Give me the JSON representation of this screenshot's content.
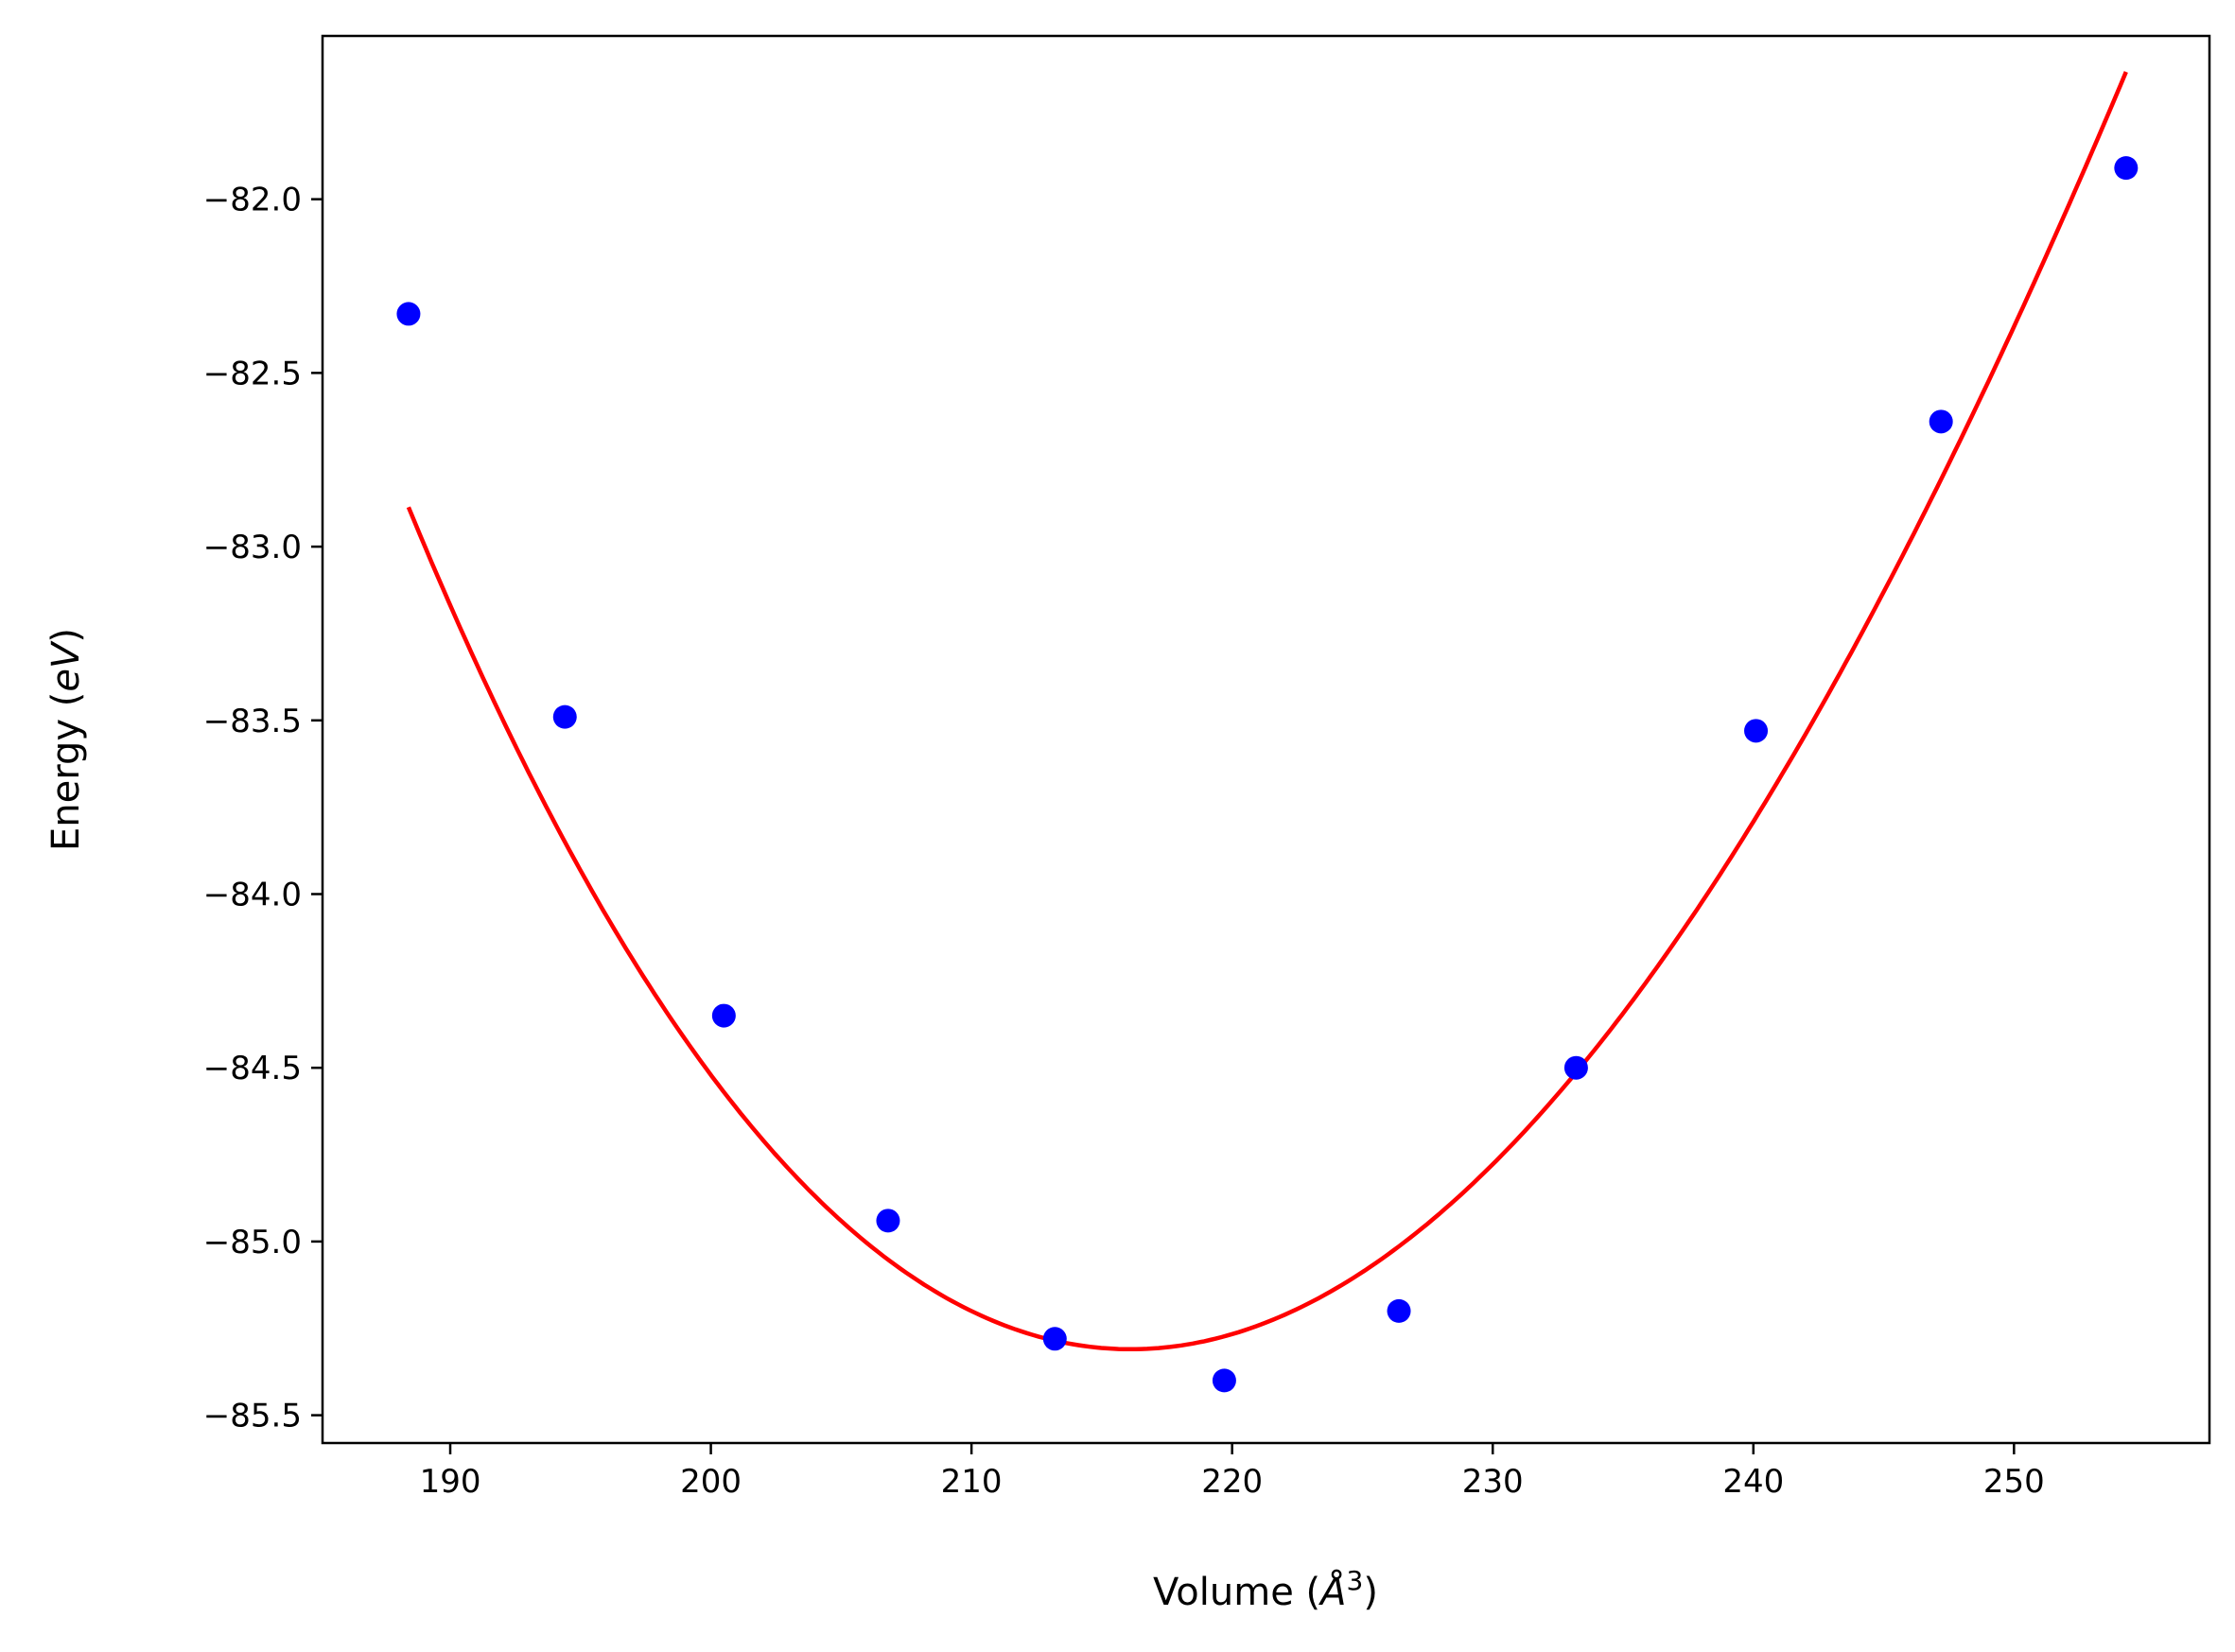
{
  "chart_data": {
    "type": "scatter",
    "title": "",
    "xlabel": "Volume (Å³)",
    "xlabel_parts": {
      "prefix": "Volume (",
      "symbol": "Å",
      "exponent": "3",
      "suffix": ")"
    },
    "ylabel": "Energy (eV)",
    "ylabel_parts": {
      "prefix": "Energy (",
      "unit": "eV",
      "suffix": ")"
    },
    "xlim": [
      185.1,
      257.5
    ],
    "ylim": [
      -85.58,
      -81.53
    ],
    "xticks": [
      190,
      200,
      210,
      220,
      230,
      240,
      250
    ],
    "yticks": [
      -82.0,
      -82.5,
      -83.0,
      -83.5,
      -84.0,
      -84.5,
      -85.0,
      -85.5
    ],
    "ytick_labels": [
      "−82.0",
      "−82.5",
      "−83.0",
      "−83.5",
      "−84.0",
      "−84.5",
      "−85.0",
      "−85.5"
    ],
    "grid": false,
    "series": [
      {
        "kind": "scatter",
        "color": "#0000ff",
        "x": [
          188.4,
          194.4,
          200.5,
          206.8,
          213.2,
          219.7,
          226.4,
          233.2,
          240.1,
          247.2,
          254.3
        ],
        "y": [
          -82.33,
          -83.49,
          -84.35,
          -84.94,
          -85.28,
          -85.4,
          -85.2,
          -84.5,
          -83.53,
          -82.64,
          -81.91
        ]
      },
      {
        "kind": "line",
        "color": "#ff0000",
        "fit": {
          "x_min": 188.4,
          "x_max": 254.3,
          "E0": -85.31,
          "V0": 216.1,
          "c2": 0.00289,
          "c3": -9.7e-06
        }
      }
    ]
  }
}
